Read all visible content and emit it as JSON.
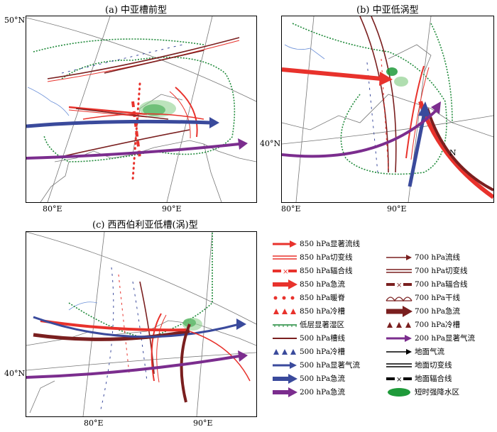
{
  "panels": {
    "a": {
      "title": "(a) 中亚槽前型",
      "lat_label": "50°N",
      "lon_labels": [
        "80°E",
        "90°E"
      ]
    },
    "b": {
      "title": "(b) 中亚低涡型",
      "lat_label": "40°N",
      "lon_labels": [
        "80°E",
        "90°E"
      ],
      "annotation": "N"
    },
    "c": {
      "title": "(c) 西西伯利亚低槽(涡)型",
      "lat_label": "40°N",
      "lon_labels": [
        "80°E",
        "90°E"
      ]
    }
  },
  "legend": {
    "col1": [
      {
        "label": "850 hPa显著流线",
        "symbol": "arrow-red"
      },
      {
        "label": "850 hPa切变线",
        "symbol": "double-red"
      },
      {
        "label": "850 hPa辐合线",
        "symbol": "conv-red"
      },
      {
        "label": "850 hPa急流",
        "symbol": "jet-red"
      },
      {
        "label": "850 hPa暖脊",
        "symbol": "dots-red"
      },
      {
        "label": "850 hPa冷槽",
        "symbol": "tri-red"
      },
      {
        "label": "低层显著湿区",
        "symbol": "wet-green"
      },
      {
        "label": "500 hPa槽线",
        "symbol": "line-darkred"
      },
      {
        "label": "500 hPa冷槽",
        "symbol": "tri-blue"
      },
      {
        "label": "500 hPa显著气流",
        "symbol": "arrow-blue"
      },
      {
        "label": "500 hPa急流",
        "symbol": "jet-blue"
      },
      {
        "label": "200 hPa急流",
        "symbol": "jet-purple"
      }
    ],
    "col2": [
      {
        "label": "700 hPa流线",
        "symbol": "arrow-darkred-thin"
      },
      {
        "label": "700 hPa切变线",
        "symbol": "double-darkred"
      },
      {
        "label": "700 hPa辐合线",
        "symbol": "conv-darkred"
      },
      {
        "label": "700 hPa干线",
        "symbol": "dryline"
      },
      {
        "label": "700 hPa急流",
        "symbol": "jet-darkred"
      },
      {
        "label": "700 hPa冷槽",
        "symbol": "tri-darkred"
      },
      {
        "label": "200 hPa显著气流",
        "symbol": "arrow-purple"
      },
      {
        "label": "地面气流",
        "symbol": "arrow-black"
      },
      {
        "label": "地面切变线",
        "symbol": "double-black"
      },
      {
        "label": "地面辐合线",
        "symbol": "conv-black"
      },
      {
        "label": "短时强降水区",
        "symbol": "ellipse-green"
      }
    ]
  },
  "colors": {
    "red": "#e8322c",
    "darkred": "#7a1f1f",
    "blue": "#3a4a9c",
    "purple": "#7b2d8e",
    "green": "#1f8a3a",
    "lightgreen": "#8fd08f",
    "border": "#6b6b6b",
    "river": "#6a8fd8"
  }
}
